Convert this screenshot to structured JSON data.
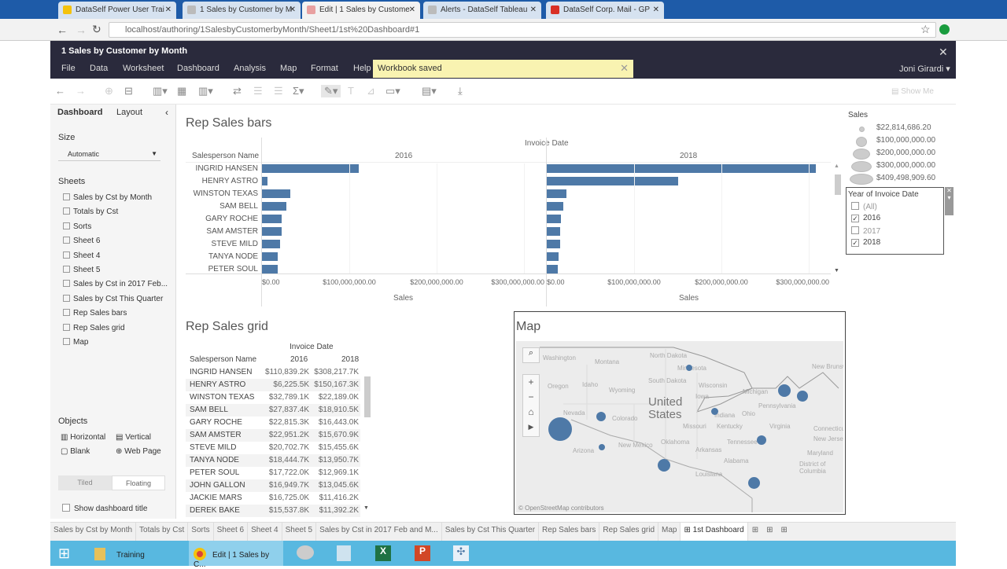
{
  "browser": {
    "tabs": [
      {
        "label": "DataSelf Power User Trai",
        "color": "#f4c20d"
      },
      {
        "label": "1 Sales by Customer by M",
        "color": "#bbb"
      },
      {
        "label": "Edit | 1 Sales by Custome",
        "color": "#e8a0a0"
      },
      {
        "label": "Alerts - DataSelf Tableau",
        "color": "#bbb"
      },
      {
        "label": "DataSelf Corp. Mail - GP",
        "color": "#d93025"
      }
    ],
    "url": "localhost/authoring/1SalesbyCustomerbyMonth/Sheet1/1st%20Dashboard#1"
  },
  "app": {
    "workbook_title": "1 Sales by Customer by Month",
    "menu": [
      "File",
      "Data",
      "Worksheet",
      "Dashboard",
      "Analysis",
      "Map",
      "Format",
      "Help"
    ],
    "notification": "Workbook saved",
    "user": "Joni Girardi",
    "show_me": "Show Me"
  },
  "left": {
    "tabs": [
      "Dashboard",
      "Layout"
    ],
    "size_label": "Size",
    "size_value": "Automatic",
    "sheets_label": "Sheets",
    "sheets": [
      "Sales by Cst by Month",
      "Totals by Cst",
      "Sorts",
      "Sheet 6",
      "Sheet 4",
      "Sheet 5",
      "Sales by Cst in 2017 Feb...",
      "Sales by Cst This Quarter",
      "Rep Sales bars",
      "Rep Sales grid",
      "Map"
    ],
    "objects_label": "Objects",
    "objects": [
      "Horizontal",
      "Vertical",
      "Blank",
      "Web Page"
    ],
    "tiled": "Tiled",
    "floating": "Floating",
    "show_title": "Show dashboard title"
  },
  "bars": {
    "title": "Rep Sales bars",
    "header": "Invoice Date",
    "row_header": "Salesperson Name",
    "years": [
      "2016",
      "2018"
    ],
    "ticks": [
      "$0.00",
      "$100,000,000.00",
      "$200,000,000.00",
      "$300,000,000.00"
    ],
    "axis_label": "Sales",
    "names": [
      "INGRID HANSEN",
      "HENRY ASTRO",
      "WINSTON TEXAS",
      "SAM BELL",
      "GARY ROCHE",
      "SAM AMSTER",
      "STEVE MILD",
      "TANYA NODE",
      "PETER SOUL"
    ],
    "values_2016_millions": [
      110.8392,
      6.2255,
      32.7891,
      27.8374,
      22.8153,
      22.9512,
      20.7027,
      18.4447,
      17.722
    ],
    "values_2018_millions": [
      308.2177,
      150.1673,
      22.189,
      18.9105,
      16.443,
      15.6709,
      15.4556,
      13.9507,
      12.9691
    ],
    "color": "#4e79a7"
  },
  "grid": {
    "title": "Rep Sales grid",
    "header": "Invoice Date",
    "row_header": "Salesperson Name",
    "years": [
      "2016",
      "2018"
    ],
    "rows": [
      [
        "INGRID HANSEN",
        "$110,839.2K",
        "$308,217.7K"
      ],
      [
        "HENRY ASTRO",
        "$6,225.5K",
        "$150,167.3K"
      ],
      [
        "WINSTON TEXAS",
        "$32,789.1K",
        "$22,189.0K"
      ],
      [
        "SAM BELL",
        "$27,837.4K",
        "$18,910.5K"
      ],
      [
        "GARY ROCHE",
        "$22,815.3K",
        "$16,443.0K"
      ],
      [
        "SAM AMSTER",
        "$22,951.2K",
        "$15,670.9K"
      ],
      [
        "STEVE MILD",
        "$20,702.7K",
        "$15,455.6K"
      ],
      [
        "TANYA NODE",
        "$18,444.7K",
        "$13,950.7K"
      ],
      [
        "PETER SOUL",
        "$17,722.0K",
        "$12,969.1K"
      ],
      [
        "JOHN GALLON",
        "$16,949.7K",
        "$13,045.6K"
      ],
      [
        "JACKIE MARS",
        "$16,725.0K",
        "$11,416.2K"
      ],
      [
        "DEREK BAKE",
        "$15,537.8K",
        "$11,392.2K"
      ]
    ]
  },
  "legend": {
    "title": "Sales",
    "items": [
      "$22,814,686.20",
      "$100,000,000.00",
      "$200,000,000.00",
      "$300,000,000.00",
      "$409,498,909.60"
    ]
  },
  "filter": {
    "title": "Year of Invoice Date",
    "items": [
      {
        "label": "(All)",
        "checked": false
      },
      {
        "label": "2016",
        "checked": true
      },
      {
        "label": "2017",
        "checked": false
      },
      {
        "label": "2018",
        "checked": true
      }
    ]
  },
  "map": {
    "title": "Map",
    "country": "United States",
    "attribution": "© OpenStreetMap contributors",
    "labels": [
      "Washington",
      "Montana",
      "North Dakota",
      "Minnesota",
      "Oregon",
      "Idaho",
      "South Dakota",
      "Wyoming",
      "Wisconsin",
      "Michigan",
      "Iowa",
      "Nevada",
      "Colorado",
      "Missouri",
      "Indiana",
      "Ohio",
      "Pennsylvania",
      "Kentucky",
      "Virginia",
      "Arizona",
      "New Mexico",
      "Oklahoma",
      "Arkansas",
      "Tennessee",
      "Alabama",
      "Louisiana",
      "Maryland",
      "District of Columbia",
      "New Jersey",
      "Connecticut",
      "New Brunswick"
    ]
  },
  "sheet_tabs": [
    "Sales by Cst by Month",
    "Totals by Cst",
    "Sorts",
    "Sheet 6",
    "Sheet 4",
    "Sheet 5",
    "Sales by Cst in 2017 Feb and M...",
    "Sales by Cst This Quarter",
    "Rep Sales bars",
    "Rep Sales grid",
    "Map",
    "1st Dashboard"
  ],
  "taskbar": {
    "items": [
      "Training",
      "Edit | 1 Sales by C..."
    ]
  }
}
